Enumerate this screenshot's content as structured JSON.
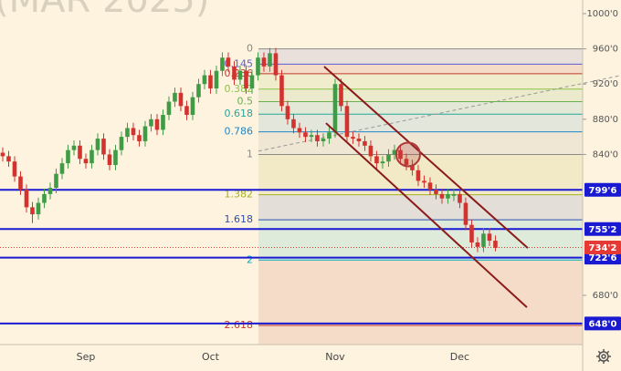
{
  "chart_data": {
    "type": "candlestick",
    "watermark": "(MAR 2025)",
    "categories": [
      null,
      null,
      null,
      null,
      null,
      null,
      null,
      null,
      null,
      null,
      null,
      null,
      null,
      null,
      "Sep",
      null,
      null,
      null,
      null,
      null,
      null,
      null,
      null,
      null,
      null,
      null,
      null,
      null,
      null,
      null,
      null,
      null,
      null,
      null,
      null,
      "Oct",
      null,
      null,
      null,
      null,
      null,
      null,
      null,
      null,
      null,
      null,
      null,
      null,
      null,
      null,
      null,
      null,
      null,
      null,
      null,
      null,
      "Nov",
      null,
      null,
      null,
      null,
      null,
      null,
      null,
      null,
      null,
      null,
      null,
      null,
      null,
      null,
      null,
      null,
      null,
      null,
      null,
      null,
      "Dec",
      null,
      null,
      null,
      null,
      null,
      null
    ],
    "ohlc": [
      [
        842,
        848,
        832,
        838
      ],
      [
        838,
        844,
        826,
        832
      ],
      [
        832,
        838,
        809,
        815
      ],
      [
        815,
        821,
        794,
        800
      ],
      [
        800,
        806,
        774,
        780
      ],
      [
        780,
        786,
        762,
        772
      ],
      [
        772,
        791,
        766,
        785
      ],
      [
        785,
        801,
        779,
        795
      ],
      [
        795,
        808,
        789,
        802
      ],
      [
        802,
        824,
        796,
        818
      ],
      [
        818,
        836,
        812,
        830
      ],
      [
        830,
        851,
        824,
        845
      ],
      [
        845,
        856,
        839,
        850
      ],
      [
        850,
        856,
        829,
        835
      ],
      [
        835,
        841,
        824,
        830
      ],
      [
        830,
        851,
        824,
        845
      ],
      [
        845,
        864,
        839,
        858
      ],
      [
        858,
        864,
        834,
        840
      ],
      [
        840,
        846,
        822,
        828
      ],
      [
        828,
        851,
        822,
        845
      ],
      [
        845,
        866,
        839,
        860
      ],
      [
        860,
        876,
        854,
        870
      ],
      [
        870,
        876,
        856,
        862
      ],
      [
        862,
        868,
        849,
        855
      ],
      [
        855,
        878,
        849,
        872
      ],
      [
        872,
        886,
        866,
        880
      ],
      [
        880,
        886,
        862,
        868
      ],
      [
        868,
        891,
        862,
        885
      ],
      [
        885,
        906,
        879,
        900
      ],
      [
        900,
        916,
        894,
        910
      ],
      [
        910,
        916,
        889,
        895
      ],
      [
        895,
        901,
        879,
        885
      ],
      [
        885,
        911,
        879,
        905
      ],
      [
        905,
        926,
        899,
        920
      ],
      [
        920,
        936,
        914,
        930
      ],
      [
        930,
        936,
        909,
        915
      ],
      [
        915,
        941,
        909,
        935
      ],
      [
        935,
        956,
        929,
        950
      ],
      [
        950,
        956,
        934,
        940
      ],
      [
        940,
        946,
        919,
        925
      ],
      [
        925,
        941,
        919,
        935
      ],
      [
        935,
        941,
        909,
        915
      ],
      [
        915,
        936,
        909,
        930
      ],
      [
        930,
        956,
        924,
        950
      ],
      [
        950,
        956,
        934,
        940
      ],
      [
        940,
        961,
        934,
        955
      ],
      [
        955,
        961,
        924,
        930
      ],
      [
        930,
        936,
        889,
        895
      ],
      [
        895,
        901,
        874,
        880
      ],
      [
        880,
        886,
        864,
        870
      ],
      [
        870,
        876,
        859,
        865
      ],
      [
        865,
        871,
        854,
        860
      ],
      [
        860,
        868,
        854,
        862
      ],
      [
        862,
        868,
        849,
        855
      ],
      [
        855,
        864,
        849,
        858
      ],
      [
        858,
        871,
        852,
        865
      ],
      [
        865,
        926,
        859,
        920
      ],
      [
        920,
        926,
        889,
        895
      ],
      [
        895,
        901,
        854,
        860
      ],
      [
        860,
        866,
        852,
        858
      ],
      [
        858,
        864,
        849,
        855
      ],
      [
        855,
        861,
        844,
        850
      ],
      [
        850,
        856,
        832,
        838
      ],
      [
        838,
        844,
        824,
        830
      ],
      [
        830,
        838,
        824,
        832
      ],
      [
        832,
        846,
        826,
        840
      ],
      [
        840,
        851,
        834,
        845
      ],
      [
        845,
        851,
        829,
        835
      ],
      [
        835,
        841,
        822,
        828
      ],
      [
        828,
        834,
        816,
        822
      ],
      [
        822,
        828,
        804,
        810
      ],
      [
        810,
        816,
        802,
        808
      ],
      [
        808,
        814,
        794,
        800
      ],
      [
        800,
        806,
        789,
        795
      ],
      [
        795,
        801,
        784,
        790
      ],
      [
        790,
        801,
        784,
        795
      ],
      [
        793,
        801,
        787,
        795
      ],
      [
        795,
        801,
        779,
        785
      ],
      [
        785,
        791,
        754,
        760
      ],
      [
        760,
        766,
        734,
        740
      ],
      [
        740,
        746,
        729,
        735
      ],
      [
        735,
        756,
        729,
        750
      ],
      [
        750,
        756,
        736,
        742
      ],
      [
        742,
        748,
        730,
        734
      ]
    ],
    "up_color": "#3f9b45",
    "down_color": "#d2332f",
    "xlim": [
      -0.46,
      97.7
    ],
    "ylim": [
      624,
      1015.5
    ],
    "yticks": [
      {
        "value": 1000,
        "label": "1000'0"
      },
      {
        "value": 960,
        "label": "960'0"
      },
      {
        "value": 920,
        "label": "920'0"
      },
      {
        "value": 880,
        "label": "880'0"
      },
      {
        "value": 840,
        "label": "840'0"
      },
      {
        "value": 680,
        "label": "680'0"
      }
    ],
    "fib": {
      "start": 43.08,
      "levels": [
        {
          "label": "0",
          "value": 960,
          "color": "#8a8a8a"
        },
        {
          "label": "0.145",
          "value": 942.6,
          "color": "#5c5cd0"
        },
        {
          "label": "0.236",
          "value": 931.7,
          "color": "#c0392b"
        },
        {
          "label": "0.382",
          "value": 914.2,
          "color": "#8bc34a"
        },
        {
          "label": "0.5",
          "value": 900,
          "color": "#6ab04c"
        },
        {
          "label": "0.618",
          "value": 885.8,
          "color": "#26a69a"
        },
        {
          "label": "0.786",
          "value": 865.7,
          "color": "#1e88c8"
        },
        {
          "label": "1",
          "value": 840,
          "color": "#8a8a8a"
        },
        {
          "label": "1.382",
          "value": 794.2,
          "color": "#a4b020"
        },
        {
          "label": "1.618",
          "value": 765.8,
          "color": "#2b4fb0"
        },
        {
          "label": "2",
          "value": 720,
          "color": "#00acc1"
        },
        {
          "label": "2.618",
          "value": 645.8,
          "color": "#c0392b"
        }
      ]
    },
    "hlines": [
      {
        "value": 799.75,
        "label": "799'6",
        "color": "#1a1ad2"
      },
      {
        "value": 755.25,
        "label": "755'2",
        "color": "#1a1ad2"
      },
      {
        "value": 722.75,
        "label": "722'6",
        "color": "#1a1ad2"
      },
      {
        "value": 648,
        "label": "648'0",
        "color": "#1a1ad2"
      }
    ],
    "last_price": {
      "value": 734.25,
      "label": "734'2",
      "color": "#e53935"
    },
    "trendlines": [
      {
        "points": [
          [
            54.15,
            939.9
          ],
          [
            88.46,
            733.7
          ]
        ],
        "color": "#8b1a1a",
        "dashed": false
      },
      {
        "points": [
          [
            54.46,
            875.6
          ],
          [
            88.31,
            666.3
          ]
        ],
        "color": "#8b1a1a",
        "dashed": false
      },
      {
        "points": [
          [
            43.08,
            843.8
          ],
          [
            104.15,
            929.8
          ]
        ],
        "color": "#999999",
        "dashed": true
      }
    ],
    "circle": {
      "x": 68.3,
      "y": 840,
      "color": "#b03a3a"
    }
  }
}
